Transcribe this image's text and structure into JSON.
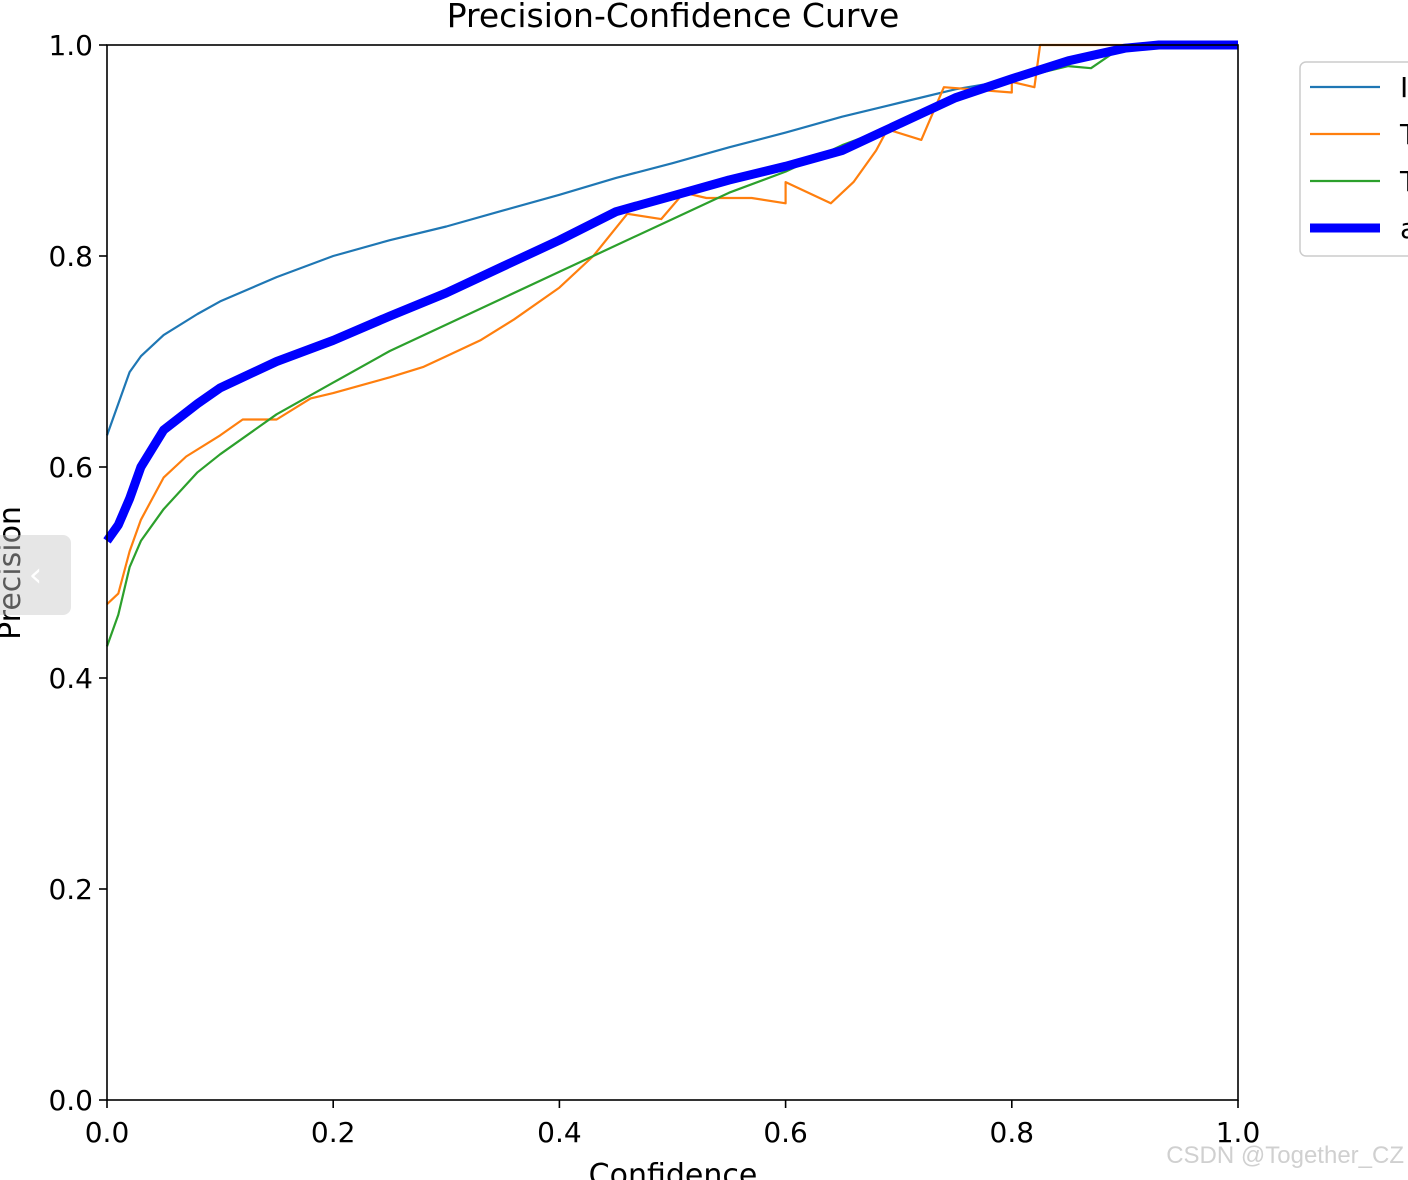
{
  "chart_data": {
    "type": "line",
    "title": "Precision-Confidence Curve",
    "xlabel": "Confidence",
    "ylabel": "Precision",
    "xlim": [
      0.0,
      1.0
    ],
    "ylim": [
      0.0,
      1.0
    ],
    "xticks": [
      0.0,
      0.2,
      0.4,
      0.6,
      0.8,
      1.0
    ],
    "yticks": [
      0.0,
      0.2,
      0.4,
      0.6,
      0.8,
      1.0
    ],
    "xtick_labels": [
      "0.0",
      "0.2",
      "0.4",
      "0.6",
      "0.8",
      "1.0"
    ],
    "ytick_labels": [
      "0.0",
      "0.2",
      "0.4",
      "0.6",
      "0.8",
      "1.0"
    ],
    "grid": false,
    "legend_position": "upper right, outside plot (cropped)",
    "series": [
      {
        "name": "I",
        "color": "#1f77b4",
        "points": [
          [
            0.0,
            0.63
          ],
          [
            0.01,
            0.66
          ],
          [
            0.02,
            0.69
          ],
          [
            0.03,
            0.705
          ],
          [
            0.05,
            0.725
          ],
          [
            0.08,
            0.745
          ],
          [
            0.1,
            0.757
          ],
          [
            0.15,
            0.78
          ],
          [
            0.2,
            0.8
          ],
          [
            0.25,
            0.815
          ],
          [
            0.3,
            0.828
          ],
          [
            0.35,
            0.843
          ],
          [
            0.4,
            0.858
          ],
          [
            0.45,
            0.874
          ],
          [
            0.5,
            0.888
          ],
          [
            0.55,
            0.903
          ],
          [
            0.6,
            0.917
          ],
          [
            0.65,
            0.932
          ],
          [
            0.7,
            0.945
          ],
          [
            0.75,
            0.958
          ],
          [
            0.8,
            0.967
          ],
          [
            0.85,
            0.982
          ],
          [
            0.9,
            0.995
          ],
          [
            0.93,
            1.0
          ],
          [
            1.0,
            1.0
          ]
        ]
      },
      {
        "name": "T",
        "color": "#ff7f0e",
        "points": [
          [
            0.0,
            0.47
          ],
          [
            0.01,
            0.48
          ],
          [
            0.02,
            0.52
          ],
          [
            0.03,
            0.55
          ],
          [
            0.05,
            0.59
          ],
          [
            0.07,
            0.61
          ],
          [
            0.1,
            0.63
          ],
          [
            0.12,
            0.645
          ],
          [
            0.15,
            0.645
          ],
          [
            0.18,
            0.665
          ],
          [
            0.2,
            0.67
          ],
          [
            0.25,
            0.685
          ],
          [
            0.28,
            0.695
          ],
          [
            0.3,
            0.705
          ],
          [
            0.33,
            0.72
          ],
          [
            0.36,
            0.74
          ],
          [
            0.4,
            0.77
          ],
          [
            0.43,
            0.8
          ],
          [
            0.46,
            0.84
          ],
          [
            0.49,
            0.835
          ],
          [
            0.51,
            0.86
          ],
          [
            0.53,
            0.855
          ],
          [
            0.57,
            0.855
          ],
          [
            0.6,
            0.85
          ],
          [
            0.6,
            0.87
          ],
          [
            0.64,
            0.85
          ],
          [
            0.66,
            0.87
          ],
          [
            0.68,
            0.9
          ],
          [
            0.69,
            0.92
          ],
          [
            0.72,
            0.91
          ],
          [
            0.74,
            0.96
          ],
          [
            0.8,
            0.955
          ],
          [
            0.8,
            0.965
          ],
          [
            0.82,
            0.96
          ],
          [
            0.825,
            1.0
          ],
          [
            1.0,
            1.0
          ]
        ]
      },
      {
        "name": "T",
        "color": "#2ca02c",
        "points": [
          [
            0.0,
            0.43
          ],
          [
            0.01,
            0.46
          ],
          [
            0.02,
            0.505
          ],
          [
            0.03,
            0.53
          ],
          [
            0.05,
            0.56
          ],
          [
            0.08,
            0.595
          ],
          [
            0.1,
            0.612
          ],
          [
            0.15,
            0.65
          ],
          [
            0.2,
            0.68
          ],
          [
            0.25,
            0.71
          ],
          [
            0.3,
            0.735
          ],
          [
            0.35,
            0.76
          ],
          [
            0.4,
            0.785
          ],
          [
            0.45,
            0.81
          ],
          [
            0.5,
            0.835
          ],
          [
            0.55,
            0.86
          ],
          [
            0.6,
            0.88
          ],
          [
            0.65,
            0.905
          ],
          [
            0.7,
            0.925
          ],
          [
            0.75,
            0.95
          ],
          [
            0.8,
            0.967
          ],
          [
            0.85,
            0.98
          ],
          [
            0.87,
            0.978
          ],
          [
            0.9,
            1.0
          ],
          [
            1.0,
            1.0
          ]
        ]
      },
      {
        "name": "a",
        "color": "#0000ff",
        "points": [
          [
            0.0,
            0.53
          ],
          [
            0.01,
            0.545
          ],
          [
            0.02,
            0.57
          ],
          [
            0.03,
            0.6
          ],
          [
            0.05,
            0.635
          ],
          [
            0.08,
            0.66
          ],
          [
            0.1,
            0.675
          ],
          [
            0.15,
            0.7
          ],
          [
            0.2,
            0.72
          ],
          [
            0.25,
            0.743
          ],
          [
            0.3,
            0.765
          ],
          [
            0.35,
            0.79
          ],
          [
            0.4,
            0.815
          ],
          [
            0.45,
            0.842
          ],
          [
            0.5,
            0.857
          ],
          [
            0.55,
            0.872
          ],
          [
            0.6,
            0.885
          ],
          [
            0.65,
            0.9
          ],
          [
            0.7,
            0.925
          ],
          [
            0.75,
            0.95
          ],
          [
            0.8,
            0.968
          ],
          [
            0.85,
            0.985
          ],
          [
            0.9,
            0.997
          ],
          [
            0.93,
            1.0
          ],
          [
            1.0,
            1.0
          ]
        ]
      }
    ]
  },
  "ui": {
    "prev_arrow": "‹",
    "watermark": "CSDN @Together_CZ"
  }
}
